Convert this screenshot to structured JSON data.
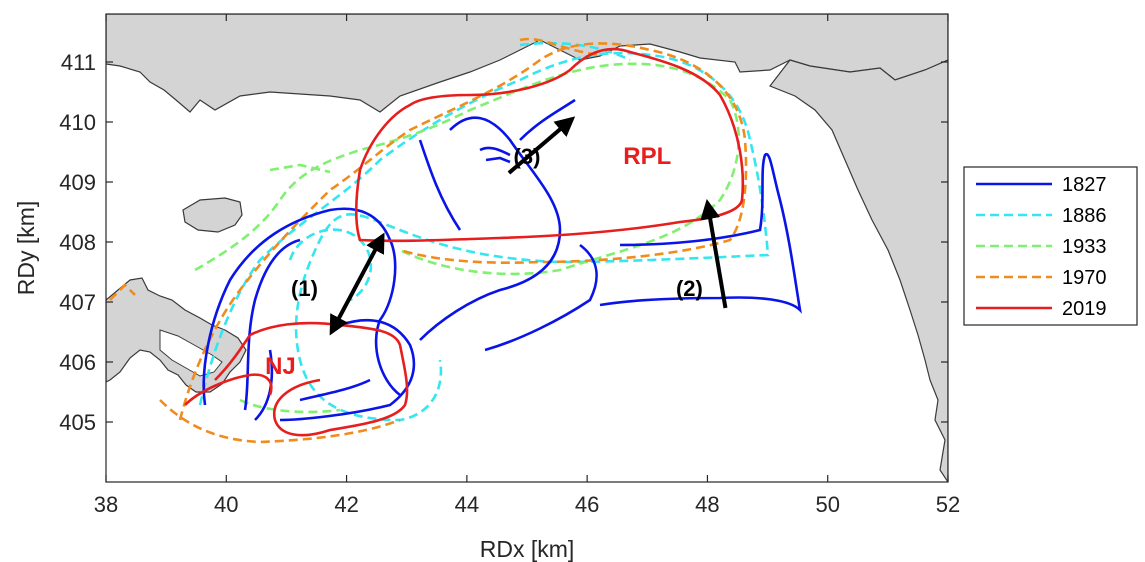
{
  "chart_data": {
    "type": "map",
    "xlabel": "RDx [km]",
    "ylabel": "RDy [km]",
    "xlim": [
      38,
      52
    ],
    "ylim": [
      404,
      411.8
    ],
    "xticks": [
      "38",
      "40",
      "42",
      "44",
      "46",
      "48",
      "50",
      "52"
    ],
    "yticks": [
      "405",
      "406",
      "407",
      "408",
      "409",
      "410",
      "411"
    ],
    "legend_position": "right",
    "series": [
      {
        "name": "1827",
        "color": "#0a14e6",
        "style": "solid"
      },
      {
        "name": "1886",
        "color": "#33e6f0",
        "style": "dashed"
      },
      {
        "name": "1933",
        "color": "#80f070",
        "style": "dashed"
      },
      {
        "name": "1970",
        "color": "#f08c1e",
        "style": "dashed"
      },
      {
        "name": "2019",
        "color": "#e61e1e",
        "style": "solid"
      }
    ],
    "annotations": [
      {
        "text": "(1)",
        "x": 41.3,
        "y": 407.1
      },
      {
        "text": "(2)",
        "x": 47.7,
        "y": 407.1
      },
      {
        "text": "(3)",
        "x": 45.0,
        "y": 409.3
      }
    ],
    "region_labels": [
      {
        "text": "RPL",
        "x": 47.0,
        "y": 409.3,
        "color": "#e61e1e"
      },
      {
        "text": "NJ",
        "x": 40.9,
        "y": 405.8,
        "color": "#e61e1e"
      }
    ],
    "arrows": [
      {
        "label": "(1)",
        "from": [
          41.75,
          406.5
        ],
        "to": [
          42.6,
          408.1
        ],
        "double": true
      },
      {
        "label": "(2)",
        "from": [
          48.3,
          406.9
        ],
        "to": [
          48.0,
          408.65
        ],
        "double": false
      },
      {
        "label": "(3)",
        "from": [
          44.7,
          409.15
        ],
        "to": [
          45.75,
          410.05
        ],
        "double": false
      }
    ]
  },
  "colors": {
    "land": "#d4d4d4",
    "coast": "#3a3a3a",
    "arrow": "#000000"
  }
}
